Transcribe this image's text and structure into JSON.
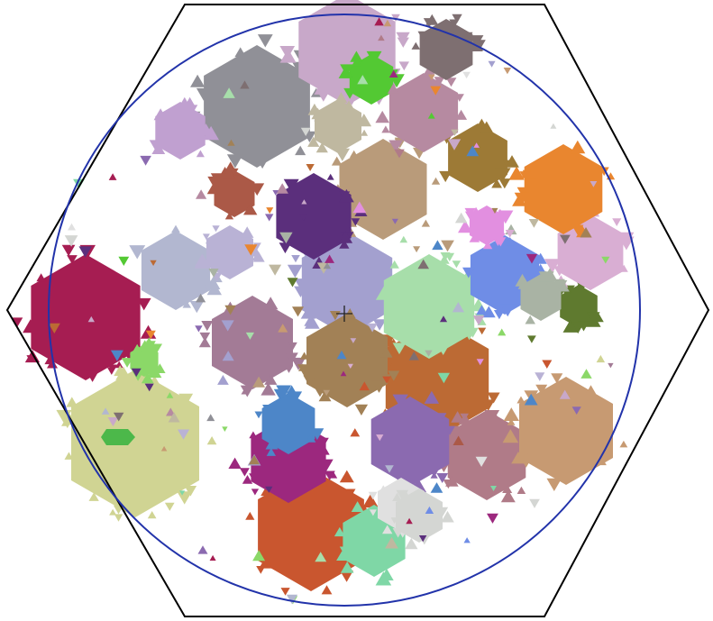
{
  "figure": {
    "background": "#ffffff",
    "hexagon_stroke": "#000000",
    "circle_stroke": "#2233aa",
    "center_marker": "plus",
    "clusters": [
      {
        "color": "#a61d52",
        "label": "crimson"
      },
      {
        "color": "#d0d493",
        "label": "khaki"
      },
      {
        "color": "#909097",
        "label": "gray"
      },
      {
        "color": "#c8a8c9",
        "label": "lilac"
      },
      {
        "color": "#c9562f",
        "label": "orange-red"
      },
      {
        "color": "#bc6a34",
        "label": "orange"
      },
      {
        "color": "#a3a0cf",
        "label": "periwinkle"
      },
      {
        "color": "#a7deaa",
        "label": "mint"
      },
      {
        "color": "#6f8de6",
        "label": "cornflower"
      },
      {
        "color": "#a37b96",
        "label": "mauve"
      },
      {
        "color": "#b99b7a",
        "label": "tan"
      },
      {
        "color": "#5b2f7c",
        "label": "plum"
      },
      {
        "color": "#9c287e",
        "label": "magenta"
      },
      {
        "color": "#a28156",
        "label": "brown"
      },
      {
        "color": "#7fd7a6",
        "label": "seafoam"
      },
      {
        "color": "#b07b88",
        "label": "dusty-rose"
      },
      {
        "color": "#53c933",
        "label": "lime"
      },
      {
        "color": "#5f7a2f",
        "label": "olive"
      },
      {
        "color": "#c79a72",
        "label": "camel"
      },
      {
        "color": "#d9aed3",
        "label": "pink-lilac"
      },
      {
        "color": "#4d86c8",
        "label": "steel-blue"
      },
      {
        "color": "#bfb8a0",
        "label": "beige"
      },
      {
        "color": "#8b6ab0",
        "label": "violet"
      },
      {
        "color": "#b2b7d0",
        "label": "pale-blue"
      }
    ]
  }
}
